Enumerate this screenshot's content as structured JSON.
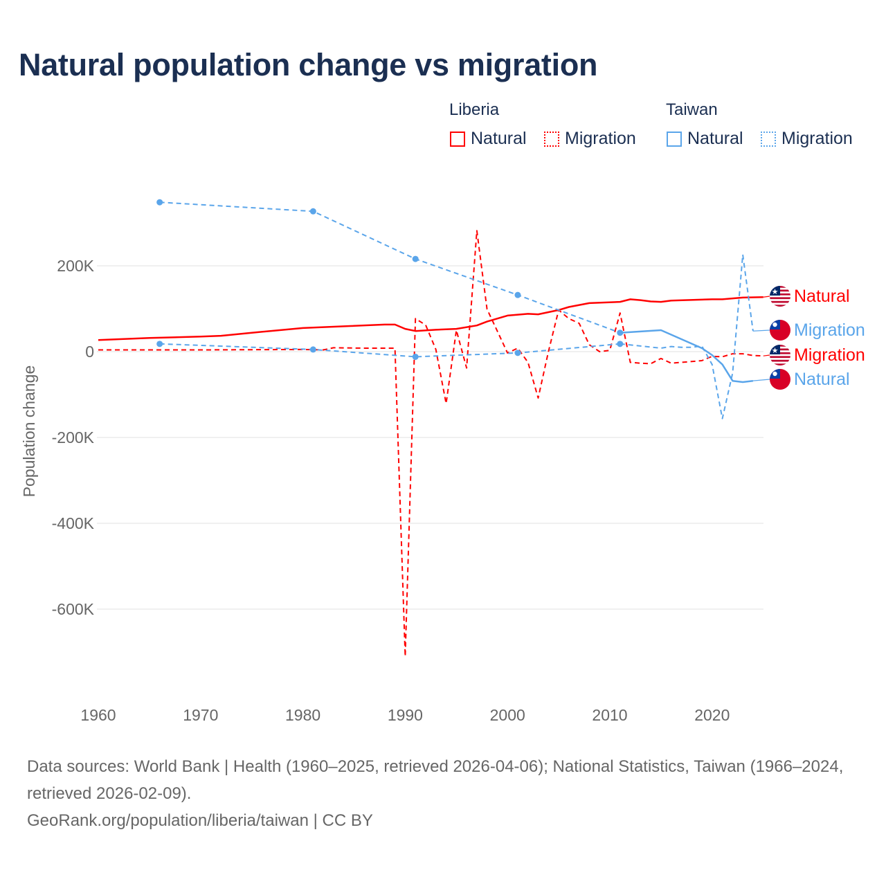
{
  "title": "Natural population change vs migration",
  "legend": {
    "groups": [
      {
        "name": "Liberia",
        "items": [
          "Natural",
          "Migration"
        ],
        "color": "#ff0000"
      },
      {
        "name": "Taiwan",
        "items": [
          "Natural",
          "Migration"
        ],
        "color": "#5aa5ea"
      }
    ]
  },
  "footer": {
    "sources": "Data sources: World Bank | Health (1960–2025, retrieved 2026-04-06); National Statistics, Taiwan (1966–2024, retrieved 2026-02-09).",
    "credit": "GeoRank.org/population/liberia/taiwan | CC BY"
  },
  "chart_data": {
    "type": "line",
    "title": "Natural population change vs migration",
    "xlabel": "",
    "ylabel": "Population change",
    "xlim": [
      1960,
      2025
    ],
    "ylim": [
      -750000,
      380000
    ],
    "x_ticks": [
      1960,
      1970,
      1980,
      1990,
      2000,
      2010,
      2020
    ],
    "x_tick_labels": [
      "1960",
      "1970",
      "1980",
      "1990",
      "2000",
      "2010",
      "2020"
    ],
    "y_ticks": [
      200000,
      0,
      -200000,
      -400000,
      -600000
    ],
    "y_tick_labels": [
      "200K",
      "0",
      "-200K",
      "-400K",
      "-600K"
    ],
    "grid": true,
    "series": [
      {
        "name": "Liberia Natural",
        "end_label": "Natural",
        "color": "#ff0000",
        "style": "solid",
        "markers": false,
        "x": [
          1960,
          1965,
          1970,
          1972,
          1975,
          1980,
          1985,
          1988,
          1989,
          1990,
          1991,
          1993,
          1995,
          1997,
          1998,
          2000,
          2002,
          2003,
          2005,
          2006,
          2008,
          2011,
          2012,
          2013,
          2014,
          2015,
          2016,
          2020,
          2021,
          2023,
          2025
        ],
        "y": [
          27000,
          32000,
          35000,
          37000,
          44000,
          55000,
          60000,
          63000,
          63000,
          53000,
          48000,
          51000,
          53000,
          61000,
          70000,
          84000,
          88000,
          87000,
          97000,
          104000,
          113000,
          116000,
          122000,
          120000,
          117000,
          116000,
          119000,
          122000,
          122000,
          126000,
          127000
        ]
      },
      {
        "name": "Liberia Migration",
        "end_label": "Migration",
        "color": "#ff0000",
        "style": "dashed",
        "markers": false,
        "x": [
          1960,
          1970,
          1980,
          1982,
          1983,
          1986,
          1989,
          1990,
          1991,
          1992,
          1993,
          1994,
          1995,
          1996,
          1997,
          1998,
          1999,
          2000,
          2001,
          2002,
          2003,
          2004,
          2005,
          2006,
          2007,
          2008,
          2009,
          2010,
          2011,
          2012,
          2013,
          2014,
          2015,
          2016,
          2017,
          2018,
          2019,
          2020,
          2021,
          2022,
          2023,
          2024,
          2025
        ],
        "y": [
          4000,
          4000,
          5000,
          4000,
          9000,
          8000,
          8000,
          -710000,
          77000,
          62000,
          5000,
          -121000,
          50000,
          -38000,
          282000,
          99000,
          48000,
          -3000,
          8000,
          -25000,
          -108000,
          0,
          97000,
          77000,
          66000,
          16000,
          0,
          3000,
          90000,
          -25000,
          -27000,
          -28000,
          -16000,
          -27000,
          -25000,
          -23000,
          -21000,
          -11000,
          -12000,
          -5000,
          -5000,
          -9000,
          -10000
        ]
      },
      {
        "name": "Taiwan Natural (census)",
        "color": "#5aa5ea",
        "style": "dashed",
        "markers": true,
        "x": [
          1966,
          1981,
          1991,
          2001,
          2011
        ],
        "y": [
          348000,
          327000,
          216000,
          132000,
          44000
        ]
      },
      {
        "name": "Taiwan Natural",
        "end_label": "Natural",
        "color": "#5aa5ea",
        "style": "solid",
        "markers": false,
        "x": [
          2011,
          2015,
          2019,
          2020,
          2021,
          2022,
          2023,
          2024
        ],
        "y": [
          44000,
          50000,
          8000,
          -8000,
          -30000,
          -68000,
          -71000,
          -68000
        ]
      },
      {
        "name": "Taiwan Migration (census)",
        "color": "#5aa5ea",
        "style": "dashed",
        "markers": true,
        "x": [
          1966,
          1981,
          1991,
          2001,
          2011
        ],
        "y": [
          18000,
          5000,
          -12000,
          -3000,
          18000
        ]
      },
      {
        "name": "Taiwan Migration",
        "end_label": "Migration",
        "color": "#5aa5ea",
        "style": "dashed",
        "markers": false,
        "x": [
          2011,
          2015,
          2016,
          2017,
          2018,
          2019,
          2020,
          2021,
          2022,
          2023,
          2024
        ],
        "y": [
          18000,
          8000,
          12000,
          10000,
          10000,
          13000,
          -30000,
          -156000,
          -50000,
          226000,
          48000
        ]
      }
    ],
    "end_labels": [
      {
        "text": "Natural",
        "country": "Liberia",
        "color": "#ff0000",
        "value": 127000
      },
      {
        "text": "Migration",
        "country": "Taiwan",
        "color": "#5aa5ea",
        "value": 48000
      },
      {
        "text": "Migration",
        "country": "Liberia",
        "color": "#ff0000",
        "value": -10000
      },
      {
        "text": "Natural",
        "country": "Taiwan",
        "color": "#5aa5ea",
        "value": -68000
      }
    ]
  }
}
